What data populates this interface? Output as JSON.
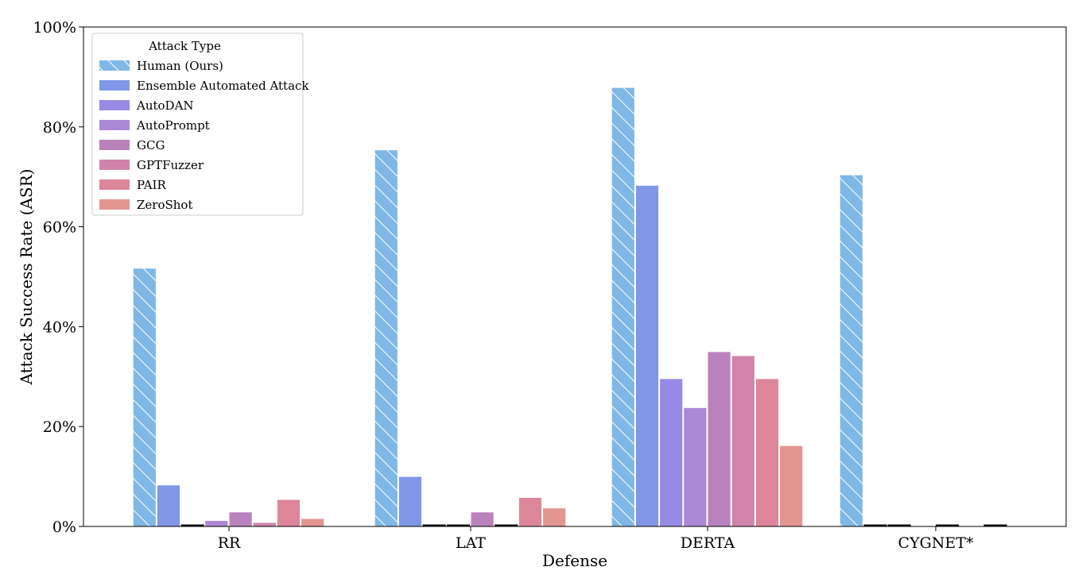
{
  "chart_data": {
    "type": "bar",
    "xlabel": "Defense",
    "ylabel": "Attack Success Rate (ASR)",
    "ylim": [
      0,
      100
    ],
    "yticks": [
      "0%",
      "20%",
      "40%",
      "60%",
      "80%",
      "100%"
    ],
    "ytick_values": [
      0,
      20,
      40,
      60,
      80,
      100
    ],
    "grid": false,
    "legend_position": "top-left",
    "legend_title": "Attack Type",
    "categories": [
      "RR",
      "LAT",
      "DERTA",
      "CYGNET*"
    ],
    "series": [
      {
        "name": "Human (Ours)",
        "color": "#7fb8e6",
        "hatch": true,
        "values": [
          51.7,
          75.4,
          87.9,
          70.4
        ]
      },
      {
        "name": "Ensemble Automated Attack",
        "color": "#7f97e6",
        "hatch": false,
        "values": [
          8.3,
          10.0,
          68.3,
          0.3
        ]
      },
      {
        "name": "AutoDAN",
        "color": "#978ae6",
        "hatch": false,
        "values": [
          0.3,
          0.3,
          29.6,
          0.3
        ]
      },
      {
        "name": "AutoPrompt",
        "color": "#ab88d6",
        "hatch": false,
        "values": [
          1.2,
          0.3,
          23.8,
          0.0
        ]
      },
      {
        "name": "GCG",
        "color": "#ba82bc",
        "hatch": false,
        "values": [
          2.9,
          2.9,
          35.0,
          0.3
        ]
      },
      {
        "name": "GPTFuzzer",
        "color": "#d184aa",
        "hatch": false,
        "values": [
          0.8,
          0.3,
          34.2,
          0.0
        ]
      },
      {
        "name": "PAIR",
        "color": "#de8699",
        "hatch": false,
        "values": [
          5.4,
          5.8,
          29.6,
          0.3
        ]
      },
      {
        "name": "ZeroShot",
        "color": "#e39590",
        "hatch": false,
        "values": [
          1.6,
          3.7,
          16.2,
          0.0
        ]
      }
    ]
  }
}
